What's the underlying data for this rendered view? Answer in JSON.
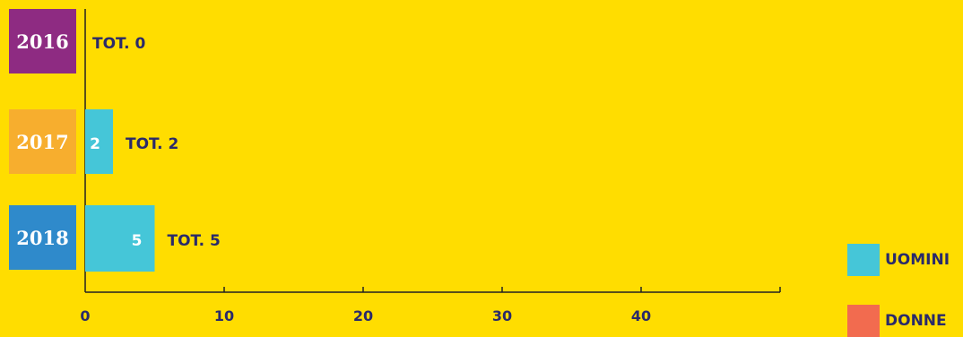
{
  "chart_data": {
    "type": "bar",
    "orientation": "horizontal",
    "stacked": true,
    "categories": [
      "2016",
      "2017",
      "2018"
    ],
    "category_colors": [
      "#8E2B82",
      "#F7AE2E",
      "#2F8ACB"
    ],
    "series": [
      {
        "name": "UOMINI",
        "color": "#45C6D8",
        "values": [
          0,
          2,
          5
        ],
        "labels": [
          "",
          "2",
          "5"
        ]
      },
      {
        "name": "DONNE",
        "color": "#F26B4F",
        "values": [
          0,
          0,
          0
        ],
        "labels": [
          "",
          "",
          ""
        ]
      }
    ],
    "totals": [
      "TOT. 0",
      "TOT. 2",
      "TOT. 5"
    ],
    "xticks": [
      "0",
      "10",
      "20",
      "30",
      "40"
    ],
    "xlim": [
      0,
      50
    ],
    "grid": false,
    "legend_position": "bottom-right"
  },
  "legend": {
    "men_label": "UOMINI",
    "women_label": "DONNE",
    "men_color": "#45C6D8",
    "women_color": "#F26B4F"
  }
}
